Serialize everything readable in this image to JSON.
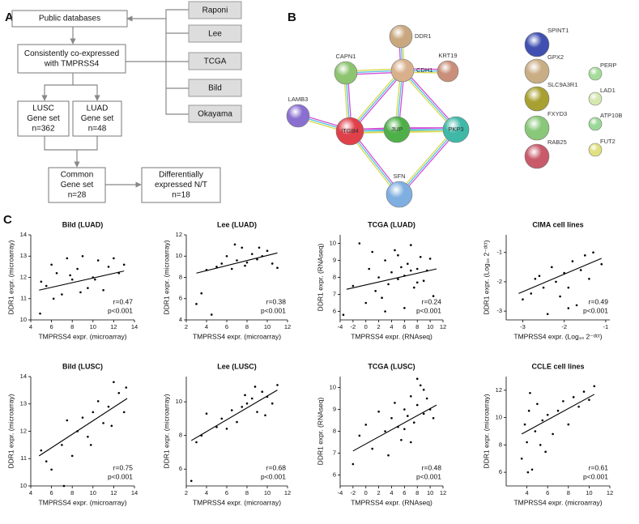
{
  "panel_labels": [
    "A",
    "B",
    "C"
  ],
  "flowchart": {
    "nodes": [
      {
        "lines": [
          "Public databases"
        ]
      },
      {
        "lines": [
          "Consistently co-expressed",
          "with TMPRSS4"
        ]
      },
      {
        "lines": [
          "LUSC",
          "Gene set",
          "n=362"
        ]
      },
      {
        "lines": [
          "LUAD",
          "Gene set",
          "n=48"
        ]
      },
      {
        "lines": [
          "Common",
          "Gene set",
          "n=28"
        ]
      },
      {
        "lines": [
          "Differentially",
          "expressed N/T",
          "n=18"
        ]
      }
    ],
    "databases": [
      "Raponi",
      "Lee",
      "TCGA",
      "Bild",
      "Okayama"
    ]
  },
  "network": {
    "nodes": [
      "DDR1",
      "CDH1",
      "CAPN1",
      "KRT19",
      "LAMB3",
      "ITGB4",
      "JUP",
      "PKP3",
      "SFN",
      "SPINT1",
      "GPX2",
      "SLC9A3R1",
      "FXYD3",
      "RAB25",
      "PERP",
      "LAD1",
      "ATP10B",
      "FUT2"
    ]
  },
  "chart_data": [
    {
      "type": "scatter",
      "title": "Bild (LUAD)",
      "x_label": "TMPRSS4 expr. (microarray)",
      "y_label": "DDR1 expr. (microarray)",
      "annotations": [
        "r=0.47",
        "p<0.001"
      ],
      "xlim": [
        4,
        14
      ],
      "xticks": [
        4,
        6,
        8,
        10,
        12,
        14
      ],
      "ylim": [
        10,
        14
      ],
      "yticks": [
        10,
        11,
        12,
        13,
        14
      ],
      "x": [
        5,
        5.5,
        6,
        6.5,
        7,
        7.5,
        8,
        8.5,
        9,
        9.5,
        10,
        10.5,
        11,
        11.5,
        12,
        12.5,
        13,
        6.2,
        8.8,
        10.2,
        4.9,
        7.8
      ],
      "values": [
        11.8,
        11.6,
        12.6,
        12.2,
        11.2,
        12.9,
        11.9,
        12.4,
        13,
        11.5,
        12,
        12.8,
        11.4,
        12.5,
        12.9,
        12.2,
        12.6,
        11,
        11.3,
        11.9,
        10.3,
        12.1
      ],
      "fit": {
        "x": [
          4.8,
          13
        ],
        "values": [
          11.4,
          12.3
        ]
      }
    },
    {
      "type": "scatter",
      "title": "Lee (LUAD)",
      "x_label": "TMPRSS4 expr. (microarray)",
      "y_label": "DDR1 expr. (microarray)",
      "annotations": [
        "r=0.38",
        "p<0.001"
      ],
      "xlim": [
        2,
        12
      ],
      "xticks": [
        2,
        4,
        6,
        8,
        10,
        12
      ],
      "ylim": [
        4,
        12
      ],
      "yticks": [
        4,
        6,
        8,
        10,
        12
      ],
      "x": [
        3,
        3.5,
        4,
        4.5,
        5,
        5.5,
        6,
        6.5,
        7,
        7.5,
        8,
        8.5,
        9,
        9.5,
        10,
        10.5,
        11,
        6.8,
        7.8,
        9.2
      ],
      "values": [
        5.5,
        6.5,
        8.7,
        4.5,
        9,
        9.3,
        10,
        8.8,
        9.6,
        10.8,
        9.4,
        10.2,
        9.7,
        10,
        10.5,
        9.3,
        8.9,
        11.1,
        9.1,
        10.8
      ],
      "fit": {
        "x": [
          3,
          11
        ],
        "values": [
          8.4,
          10.3
        ]
      }
    },
    {
      "type": "scatter",
      "title": "TCGA (LUAD)",
      "x_label": "TMPRSS4 expr. (RNAseq)",
      "y_label": "DDR1 expr. (RNAseq)",
      "annotations": [
        "r=0.24",
        "p<0.001"
      ],
      "xlim": [
        -4,
        12
      ],
      "xticks": [
        -4,
        -2,
        0,
        2,
        4,
        6,
        8,
        10,
        12
      ],
      "ylim": [
        5.5,
        10.5
      ],
      "yticks": [
        6,
        7,
        8,
        9,
        10
      ],
      "x": [
        -3.5,
        -2,
        -1,
        0,
        0.5,
        1,
        1.5,
        2,
        2.5,
        3,
        3.5,
        4,
        4.5,
        5,
        5.5,
        6,
        6.5,
        7,
        7.5,
        8,
        8.5,
        9,
        9.5,
        10,
        10.5,
        6,
        7,
        8,
        5,
        3
      ],
      "values": [
        5.8,
        7.5,
        10,
        6.5,
        8.5,
        9.5,
        7.2,
        8,
        6.8,
        9,
        7.6,
        8.3,
        9.6,
        7.9,
        8.6,
        6.2,
        8.8,
        9.9,
        7.4,
        8.5,
        9.2,
        7.8,
        8.4,
        9.1,
        6.9,
        8.1,
        8.4,
        7.7,
        9.3,
        6
      ],
      "fit": {
        "x": [
          -3,
          11
        ],
        "values": [
          7.3,
          8.5
        ]
      }
    },
    {
      "type": "scatter",
      "title": "CIMA cell lines",
      "x_label": "TMPRSS4 expr. (Log₁₀ 2⁻ᵈᶜᵗ)",
      "y_label": "DDR1 expr. (Log₁₀ 2⁻ᵈᶜᵗ)",
      "annotations": [
        "r=0.49",
        "p<0.001"
      ],
      "xlim": [
        -3.4,
        -0.9
      ],
      "xticks": [
        -3,
        -2,
        -1
      ],
      "ylim": [
        -3.3,
        -0.4
      ],
      "yticks": [
        -3,
        -2,
        -1
      ],
      "x": [
        -3,
        -2.8,
        -2.6,
        -2.5,
        -2.4,
        -2.3,
        -2.2,
        -2.1,
        -2,
        -1.9,
        -1.8,
        -1.7,
        -1.6,
        -1.5,
        -1.4,
        -1.3,
        -1.1,
        -2.7,
        -1.9
      ],
      "values": [
        -2.6,
        -2.4,
        -1.8,
        -2.2,
        -3.1,
        -1.5,
        -2,
        -2.5,
        -1.7,
        -2.2,
        -1.3,
        -2.8,
        -1.6,
        -1.1,
        -1.9,
        -1,
        -1.4,
        -1.9,
        -2.9
      ],
      "fit": {
        "x": [
          -3.1,
          -1.1
        ],
        "values": [
          -2.4,
          -1.2
        ]
      }
    },
    {
      "type": "scatter",
      "title": "Bild (LUSC)",
      "x_label": "TMPRSS4 expr. (microarray)",
      "y_label": "DDR1 expr. (microarray)",
      "annotations": [
        "r=0.75",
        "p<0.001"
      ],
      "xlim": [
        4,
        14
      ],
      "xticks": [
        4,
        6,
        8,
        10,
        12,
        14
      ],
      "ylim": [
        10,
        14
      ],
      "yticks": [
        10,
        11,
        12,
        13,
        14
      ],
      "x": [
        5,
        5.5,
        6,
        7,
        7.5,
        8,
        8.5,
        9,
        9.5,
        10,
        10.5,
        11,
        11.5,
        12,
        12.5,
        13,
        13.2,
        9.8,
        11.8,
        7.2
      ],
      "values": [
        11.3,
        10.9,
        10.6,
        11.5,
        12.4,
        11.1,
        12,
        12.5,
        11.8,
        12.7,
        13.1,
        12.3,
        12.9,
        13.8,
        13.4,
        12.7,
        13.6,
        11.5,
        12.2,
        10
      ],
      "fit": {
        "x": [
          4.8,
          13.3
        ],
        "values": [
          11.1,
          13.2
        ]
      }
    },
    {
      "type": "scatter",
      "title": "Lee (LUSC)",
      "x_label": "TMPRSS4 expr. (microarray)",
      "y_label": "DDR1 expr. (microarray)",
      "annotations": [
        "r=0.68",
        "p<0.001"
      ],
      "xlim": [
        2,
        12
      ],
      "xticks": [
        2,
        4,
        6,
        8,
        10,
        12
      ],
      "ylim": [
        5,
        11.5
      ],
      "yticks": [
        6,
        8,
        10
      ],
      "x": [
        2.5,
        3,
        3.5,
        4,
        5,
        6,
        6.5,
        7,
        7.5,
        8,
        8.5,
        9,
        9.5,
        10,
        10.5,
        11,
        8.8,
        9.8,
        7.8,
        5.5
      ],
      "values": [
        5.3,
        7.6,
        8,
        9.3,
        8.5,
        8.4,
        9.5,
        8.8,
        9.7,
        9.9,
        10.2,
        9.4,
        10.6,
        10.3,
        9.9,
        11,
        10.9,
        9.2,
        10.4,
        9
      ],
      "fit": {
        "x": [
          2.5,
          11
        ],
        "values": [
          7.7,
          10.7
        ]
      }
    },
    {
      "type": "scatter",
      "title": "TCGA (LUSC)",
      "x_label": "TMPRSS4 expr. (RNAseq)",
      "y_label": "DDR1 expr. (RNAseq)",
      "annotations": [
        "r=0.48",
        "p<0.001"
      ],
      "xlim": [
        -4,
        12
      ],
      "xticks": [
        -4,
        -2,
        0,
        2,
        4,
        6,
        8,
        10,
        12
      ],
      "ylim": [
        5.5,
        10.5
      ],
      "yticks": [
        6,
        7,
        8,
        9,
        10
      ],
      "x": [
        -2,
        -1,
        0,
        1,
        2,
        3,
        3.5,
        4,
        4.5,
        5,
        5.5,
        6,
        6.5,
        7,
        7.5,
        8,
        8.5,
        9,
        9.5,
        10,
        10.5,
        7,
        8,
        6,
        9
      ],
      "values": [
        6.5,
        7.8,
        8.3,
        7.2,
        8.9,
        8,
        6.9,
        8.6,
        9.3,
        8.2,
        7.6,
        9,
        8.7,
        9.6,
        8.4,
        9.2,
        10.1,
        8.8,
        9.5,
        9,
        8.6,
        7.5,
        10.4,
        8.1,
        9.9
      ],
      "fit": {
        "x": [
          -2,
          11
        ],
        "values": [
          7.1,
          9.2
        ]
      }
    },
    {
      "type": "scatter",
      "title": "CCLE cell lines",
      "x_label": "TMPRSS4 expr. (microarray)",
      "y_label": "DDR1 expr. (microarray)",
      "annotations": [
        "r=0.61",
        "p<0.001"
      ],
      "xlim": [
        2,
        12
      ],
      "xticks": [
        4,
        6,
        8,
        10,
        12
      ],
      "ylim": [
        5,
        13
      ],
      "yticks": [
        6,
        8,
        10,
        12
      ],
      "x": [
        3.5,
        3.8,
        4,
        4.2,
        4.5,
        4.8,
        5,
        5.3,
        5.5,
        6,
        6.5,
        7,
        7.5,
        8,
        8.5,
        9,
        9.5,
        10,
        10.5,
        4.3,
        5.8,
        4.1
      ],
      "values": [
        7,
        9.5,
        8.2,
        10.5,
        6.2,
        9,
        11,
        8,
        9.8,
        10.2,
        8.8,
        10.5,
        11.2,
        9.5,
        11.5,
        10.8,
        11.9,
        11.3,
        12.3,
        11.8,
        7.5,
        6
      ],
      "fit": {
        "x": [
          3.5,
          10.5
        ],
        "values": [
          8.8,
          11.7
        ]
      }
    }
  ]
}
